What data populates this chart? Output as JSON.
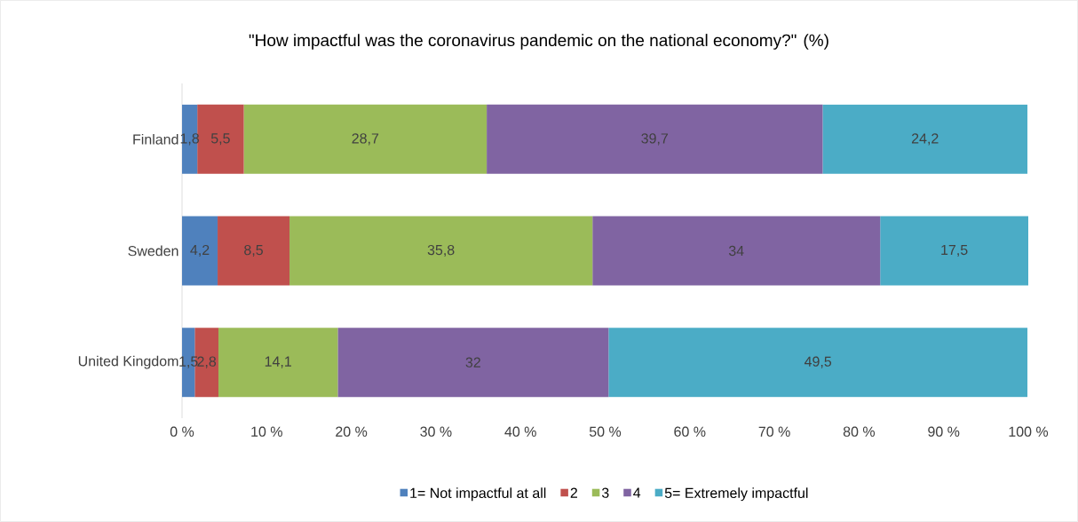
{
  "chart_data": {
    "type": "bar",
    "orientation": "horizontal",
    "stacked": true,
    "title": "\"How impactful was the coronavirus pandemic on the national economy?\" (%)",
    "categories": [
      "Finland",
      "Sweden",
      "United Kingdom"
    ],
    "series": [
      {
        "name": "1= Not impactful at all",
        "color": "#4f81bd",
        "values": [
          1.8,
          4.2,
          1.5
        ],
        "value_labels": [
          "1,8",
          "4,2",
          "1,5"
        ]
      },
      {
        "name": "2",
        "color": "#c0504d",
        "values": [
          5.5,
          8.5,
          2.8
        ],
        "value_labels": [
          "5,5",
          "8,5",
          "2,8"
        ]
      },
      {
        "name": "3",
        "color": "#9bbb59",
        "values": [
          28.7,
          35.8,
          14.1
        ],
        "value_labels": [
          "28,7",
          "35,8",
          "14,1"
        ]
      },
      {
        "name": "4",
        "color": "#8064a2",
        "values": [
          39.7,
          34,
          32
        ],
        "value_labels": [
          "39,7",
          "34",
          "32"
        ]
      },
      {
        "name": "5= Extremely impactful",
        "color": "#4bacc6",
        "values": [
          24.2,
          17.5,
          49.5
        ],
        "value_labels": [
          "24,2",
          "17,5",
          "49,5"
        ]
      }
    ],
    "xlim": [
      0,
      100
    ],
    "xticks": [
      {
        "value": 0,
        "label": "0 %"
      },
      {
        "value": 10,
        "label": "10 %"
      },
      {
        "value": 20,
        "label": "20 %"
      },
      {
        "value": 30,
        "label": "30 %"
      },
      {
        "value": 40,
        "label": "40 %"
      },
      {
        "value": 50,
        "label": "50 %"
      },
      {
        "value": 60,
        "label": "60 %"
      },
      {
        "value": 70,
        "label": "70 %"
      },
      {
        "value": 80,
        "label": "80 %"
      },
      {
        "value": 90,
        "label": "90 %"
      },
      {
        "value": 100,
        "label": "100 %"
      }
    ],
    "legend": "bottom"
  }
}
